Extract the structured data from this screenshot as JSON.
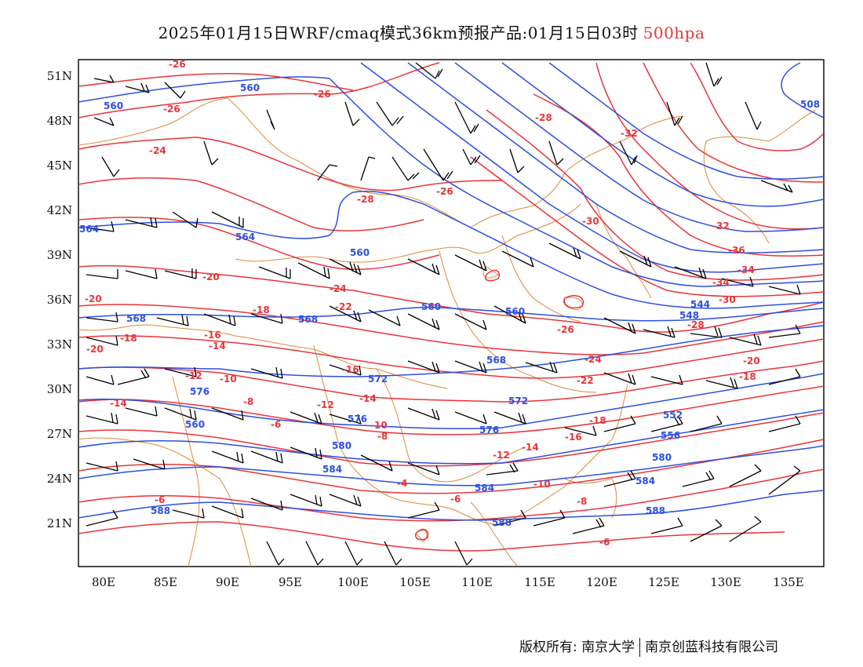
{
  "header": {
    "title_text": "2025年01月15日WRF/cmaq模式36km预报产品:01月15日03时",
    "level_text": "500hpa"
  },
  "colors": {
    "height_contour": "#2d4fe0",
    "temperature_contour": "#e8353a",
    "border": "#d98a3c",
    "wind_barb": "#000000"
  },
  "map": {
    "lon_labels": [
      "80E",
      "85E",
      "90E",
      "95E",
      "100E",
      "105E",
      "110E",
      "115E",
      "120E",
      "125E",
      "130E",
      "135E"
    ],
    "lat_labels": [
      "51N",
      "48N",
      "45N",
      "42N",
      "39N",
      "36N",
      "33N",
      "30N",
      "27N",
      "24N",
      "21N"
    ]
  },
  "height_labels": [
    "560",
    "560",
    "564",
    "560",
    "564",
    "568",
    "560",
    "568",
    "568",
    "572",
    "576",
    "560",
    "572",
    "576",
    "576",
    "580",
    "580",
    "584",
    "584",
    "584",
    "588",
    "588",
    "588",
    "544",
    "548",
    "552",
    "556",
    "560",
    "508"
  ],
  "temp_labels": [
    "-26",
    "-26",
    "-24",
    "-26",
    "-28",
    "-26",
    "-28",
    "-32",
    "-30",
    "-34",
    "-32",
    "-36",
    "-34",
    "-30",
    "-20",
    "-20",
    "-18",
    "-16",
    "-14",
    "-24",
    "-22",
    "-18",
    "-16",
    "-20",
    "-12",
    "-10",
    "-14",
    "-8",
    "-6",
    "-12",
    "-10",
    "-14",
    "-8",
    "-6",
    "-4",
    "-6",
    "-20",
    "-18",
    "-24",
    "-26",
    "-28",
    "-22",
    "-18",
    "-16",
    "-14",
    "-12",
    "-10",
    "-8",
    "-6"
  ],
  "footer": {
    "copyright_text": "版权所有: 南京大学",
    "company_text": "南京创蓝科技有限公司"
  }
}
